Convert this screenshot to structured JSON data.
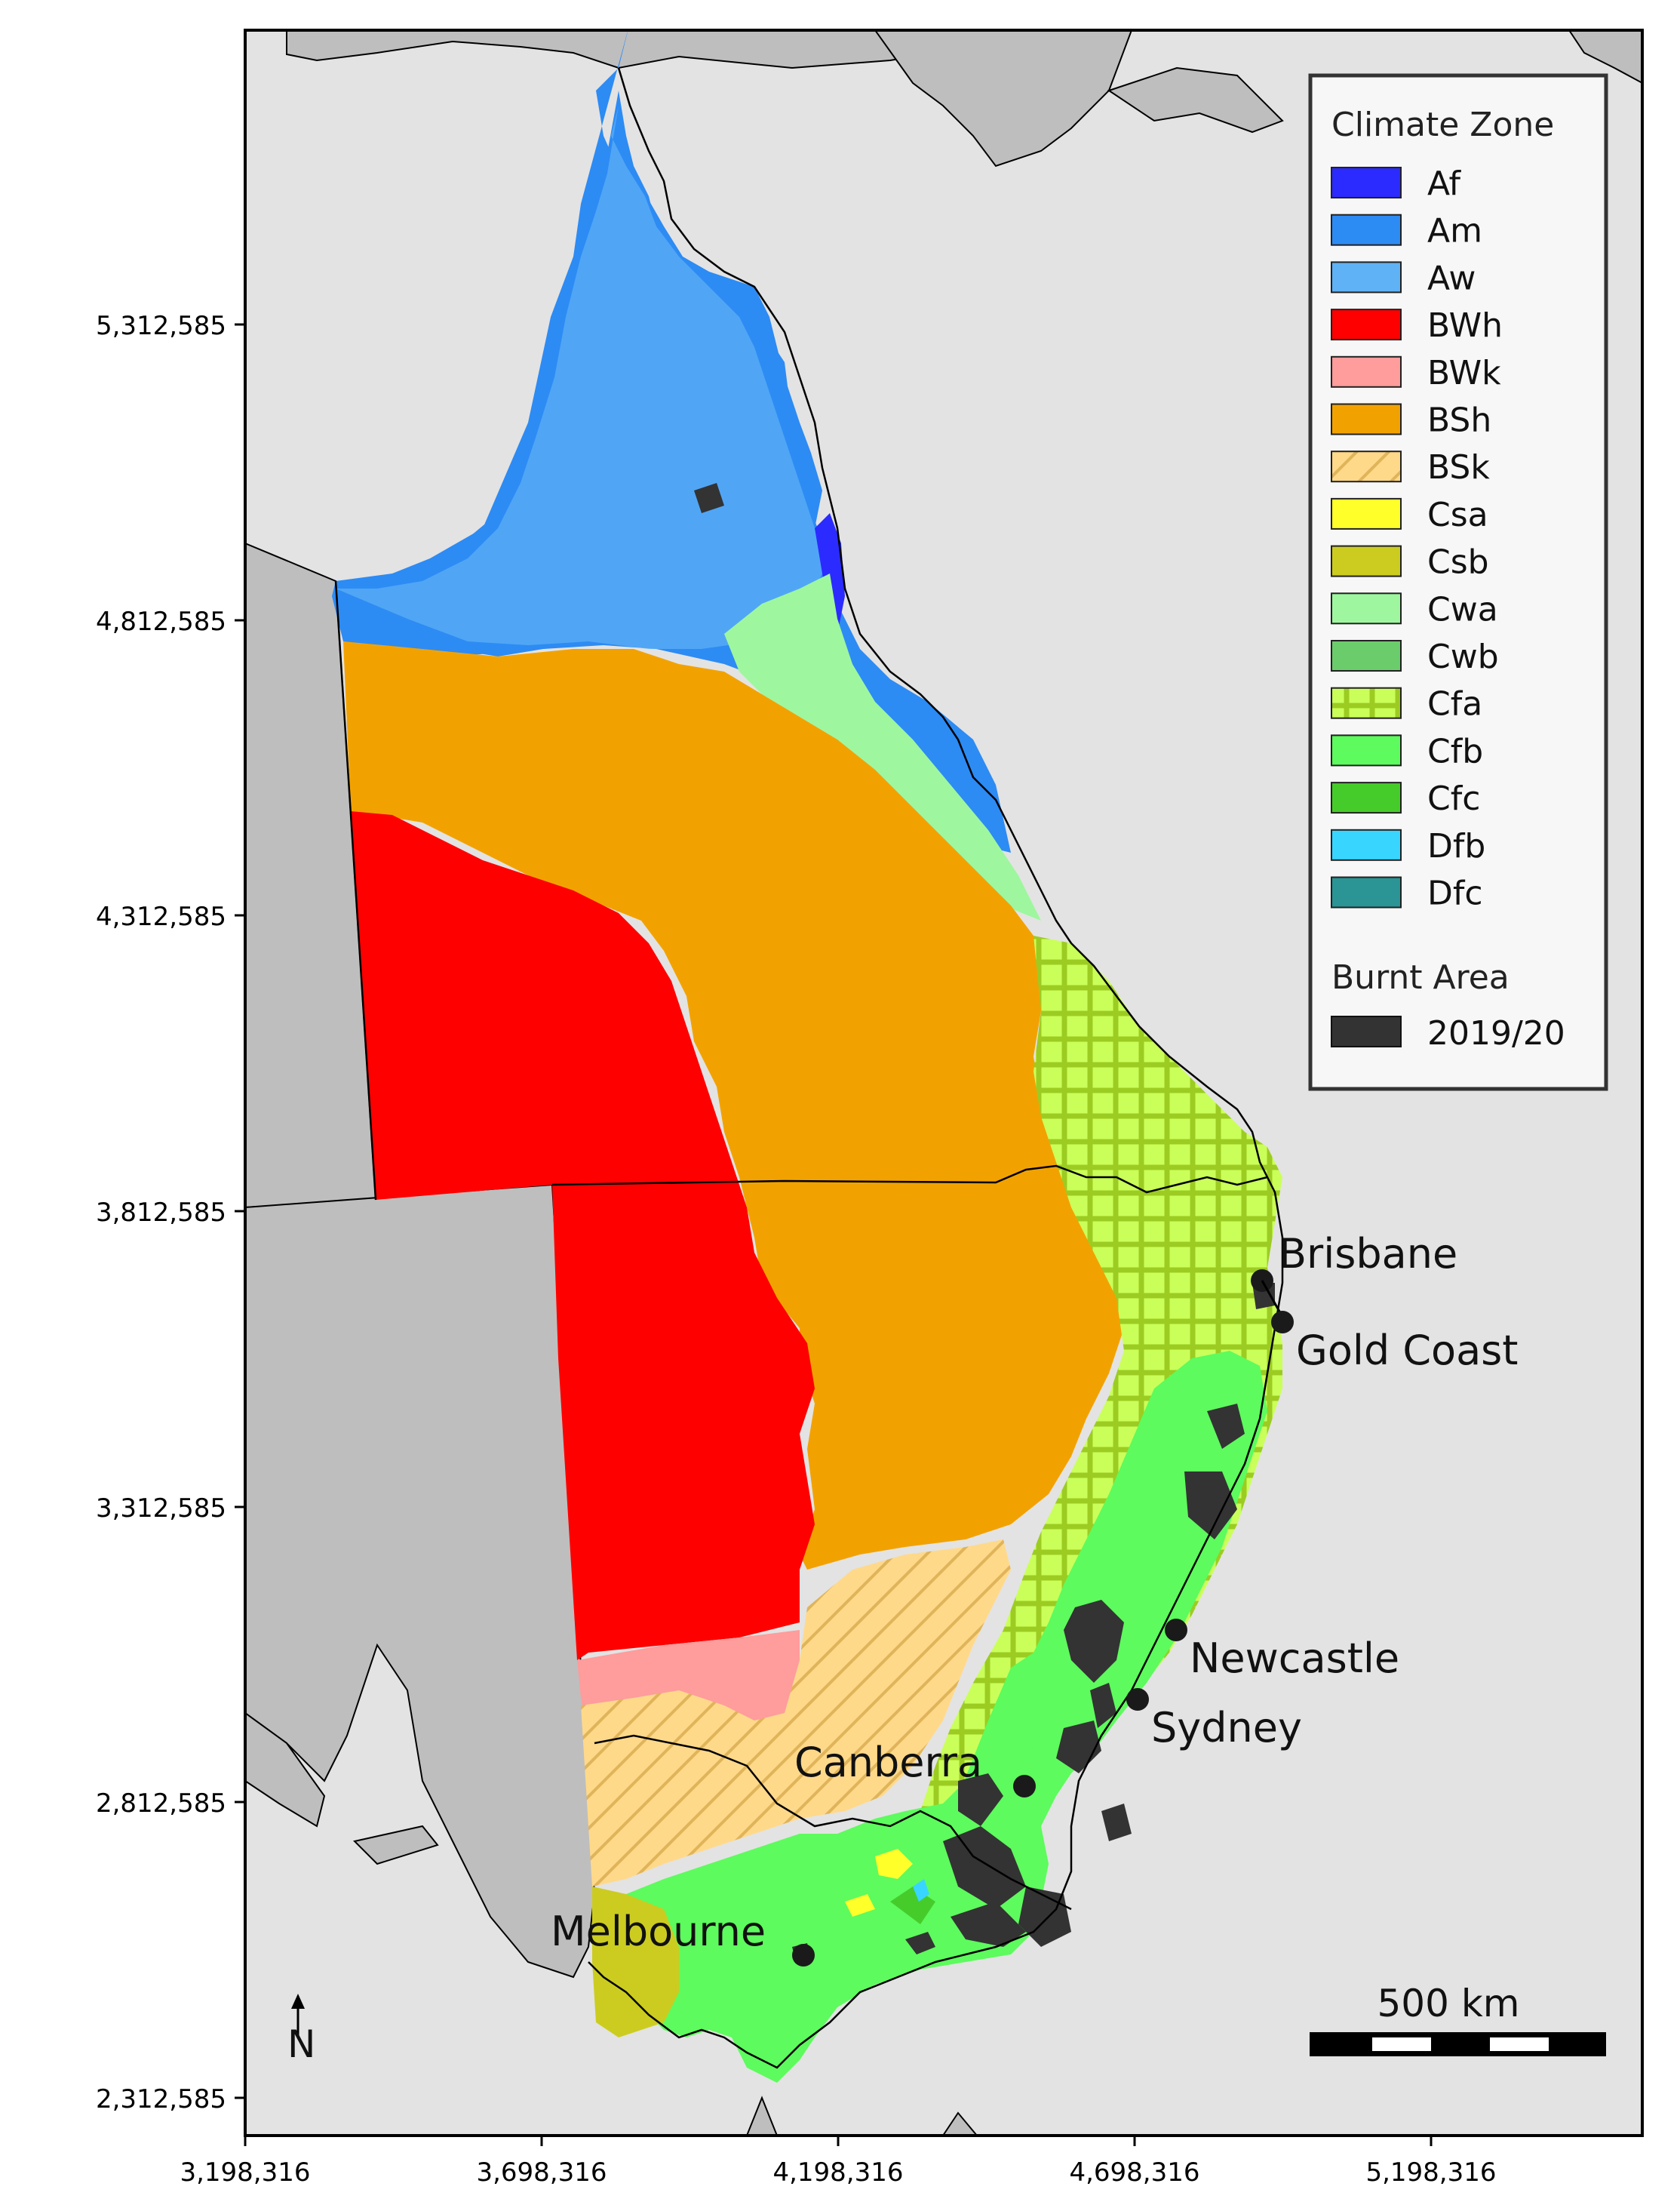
{
  "x_ticks": [
    "3,198,316",
    "3,698,316",
    "4,198,316",
    "4,698,316",
    "5,198,316"
  ],
  "y_ticks": [
    "5,312,585",
    "4,812,585",
    "4,312,585",
    "3,812,585",
    "3,312,585",
    "2,812,585",
    "2,312,585"
  ],
  "colors": {
    "ocean": "#e3e3e3",
    "land_outside": "#bebebe",
    "Af": "#2b2bff",
    "Am": "#2d8bf4",
    "Aw": "#5fb2f5",
    "BWh": "#ff0000",
    "BWk": "#ff9c9c",
    "BSh": "#f2a200",
    "BSk": "#ffd98a",
    "Csa": "#ffff2a",
    "Csb": "#cccc20",
    "Cwa": "#9ef79e",
    "Cwb": "#6bcc6b",
    "Cfa": "#caff5a",
    "Cfb": "#5dfb5d",
    "Cfc": "#46cc2a",
    "Dfb": "#38d6ff",
    "Dfc": "#2b9494",
    "burnt": "#333333"
  },
  "legend": {
    "title": "Climate Zone",
    "items": [
      {
        "code": "Af",
        "label": "Af"
      },
      {
        "code": "Am",
        "label": "Am"
      },
      {
        "code": "Aw",
        "label": "Aw"
      },
      {
        "code": "BWh",
        "label": "BWh"
      },
      {
        "code": "BWk",
        "label": "BWk"
      },
      {
        "code": "BSh",
        "label": "BSh"
      },
      {
        "code": "BSk",
        "label": "BSk"
      },
      {
        "code": "Csa",
        "label": "Csa"
      },
      {
        "code": "Csb",
        "label": "Csb"
      },
      {
        "code": "Cwa",
        "label": "Cwa"
      },
      {
        "code": "Cwb",
        "label": "Cwb"
      },
      {
        "code": "Cfa",
        "label": "Cfa"
      },
      {
        "code": "Cfb",
        "label": "Cfb"
      },
      {
        "code": "Cfc",
        "label": "Cfc"
      },
      {
        "code": "Dfb",
        "label": "Dfb"
      },
      {
        "code": "Dfc",
        "label": "Dfc"
      }
    ],
    "burnt_title": "Burnt Area",
    "burnt_label": "2019/20"
  },
  "cities": {
    "brisbane": "Brisbane",
    "gold_coast": "Gold Coast",
    "newcastle": "Newcastle",
    "sydney": "Sydney",
    "canberra": "Canberra",
    "melbourne": "Melbourne"
  },
  "scale_bar": {
    "label": "500 km"
  },
  "north_arrow": {
    "label": "N"
  }
}
